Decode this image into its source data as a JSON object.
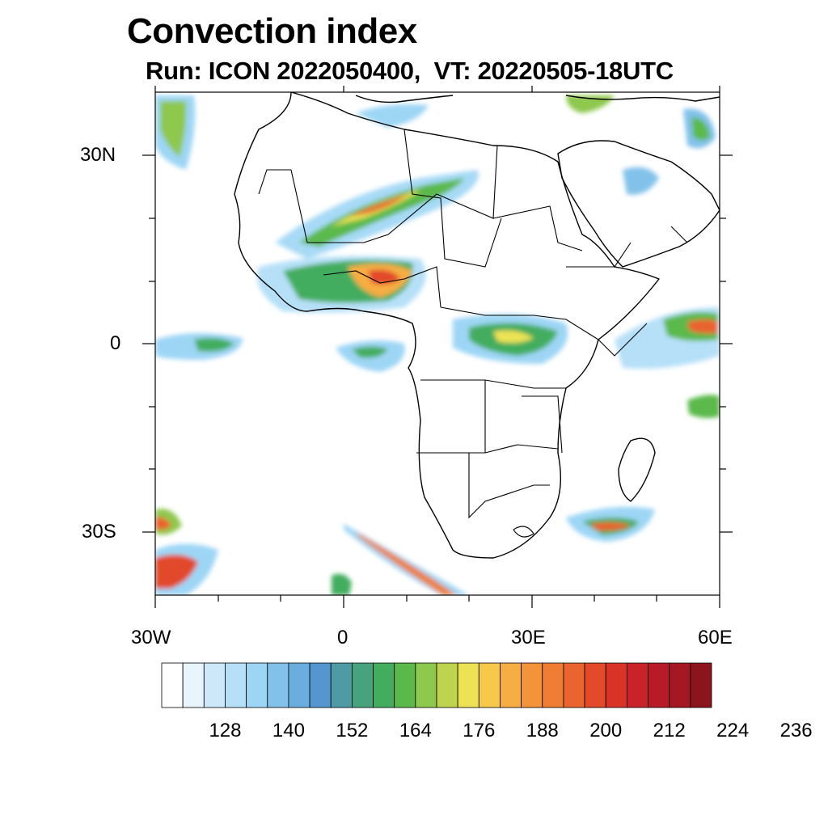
{
  "title": "Convection index",
  "subtitle": "Run: ICON 2022050400,  VT: 20220505-18UTC",
  "axes": {
    "lat_labels": [
      "30N",
      "0",
      "30S"
    ],
    "lon_labels": [
      "30W",
      "0",
      "30E",
      "60E"
    ]
  },
  "colorbar": {
    "colors": [
      "#ffffff",
      "#e8f5fd",
      "#cde9f9",
      "#b6e0f8",
      "#9dd6f5",
      "#82c2ea",
      "#6aaee0",
      "#5496d0",
      "#4e9aa5",
      "#47a37d",
      "#43ad5e",
      "#5bb94b",
      "#8ec84d",
      "#bfd44e",
      "#ece354",
      "#f6c94b",
      "#f6ad43",
      "#f4943a",
      "#ef7d33",
      "#e9642e",
      "#e24a2a",
      "#d93328",
      "#c92229",
      "#b81b27",
      "#a51723",
      "#8b141d"
    ],
    "tick_labels": [
      "128",
      "140",
      "152",
      "164",
      "176",
      "188",
      "200",
      "212",
      "224",
      "236"
    ]
  },
  "chart_data": {
    "type": "heatmap",
    "title": "Convection index",
    "subtitle": "Run: ICON 2022050400,  VT: 20220505-18UTC",
    "x_range_deg": [
      -30,
      60
    ],
    "y_range_deg": [
      -40,
      40
    ],
    "x_ticks": [
      "30W",
      "0",
      "30E",
      "60E"
    ],
    "y_ticks": [
      "30N",
      "0",
      "30S"
    ],
    "levels": [
      120,
      124,
      128,
      132,
      136,
      140,
      144,
      148,
      152,
      156,
      160,
      164,
      168,
      172,
      176,
      180,
      184,
      188,
      192,
      196,
      200,
      204,
      208,
      212,
      216,
      220,
      224,
      228,
      232,
      236,
      240
    ]
  }
}
